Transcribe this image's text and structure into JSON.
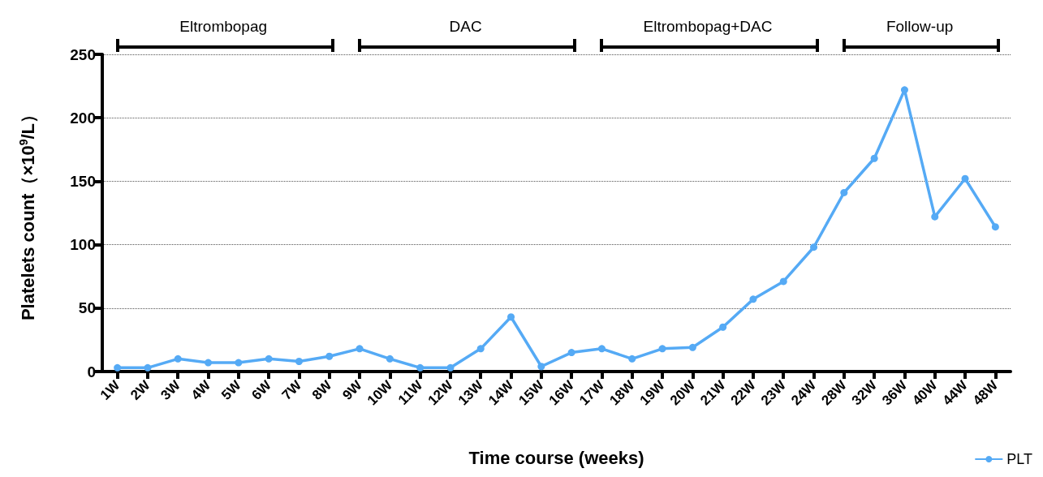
{
  "chart_data": {
    "type": "line",
    "xlabel": "Time course (weeks)",
    "ylabel": "Platelets count（×10$^{9}$/L）",
    "categories": [
      "1W",
      "2W",
      "3W",
      "4W",
      "5W",
      "6W",
      "7W",
      "8W",
      "9W",
      "10W",
      "11W",
      "12W",
      "13W",
      "14W",
      "15W",
      "16W",
      "17W",
      "18W",
      "19W",
      "20W",
      "21W",
      "22W",
      "23W",
      "24W",
      "28W",
      "32W",
      "36W",
      "40W",
      "44W",
      "48W"
    ],
    "series": [
      {
        "name": "PLT",
        "color": "#55aaf5",
        "values": [
          3,
          3,
          10,
          7,
          7,
          10,
          8,
          12,
          18,
          10,
          3,
          3,
          18,
          43,
          4,
          15,
          18,
          10,
          18,
          19,
          35,
          57,
          71,
          98,
          141,
          168,
          222,
          122,
          152,
          114
        ]
      }
    ],
    "ylim": [
      0,
      250
    ],
    "yticks": [
      0,
      50,
      100,
      150,
      200,
      250
    ],
    "grid": "y",
    "legend": "bottom right",
    "marker": "circle",
    "line_style": "solid",
    "annotations": [
      "Eltrombopag",
      "DAC",
      "Eltrombopag+DAC",
      "Follow-up"
    ]
  }
}
